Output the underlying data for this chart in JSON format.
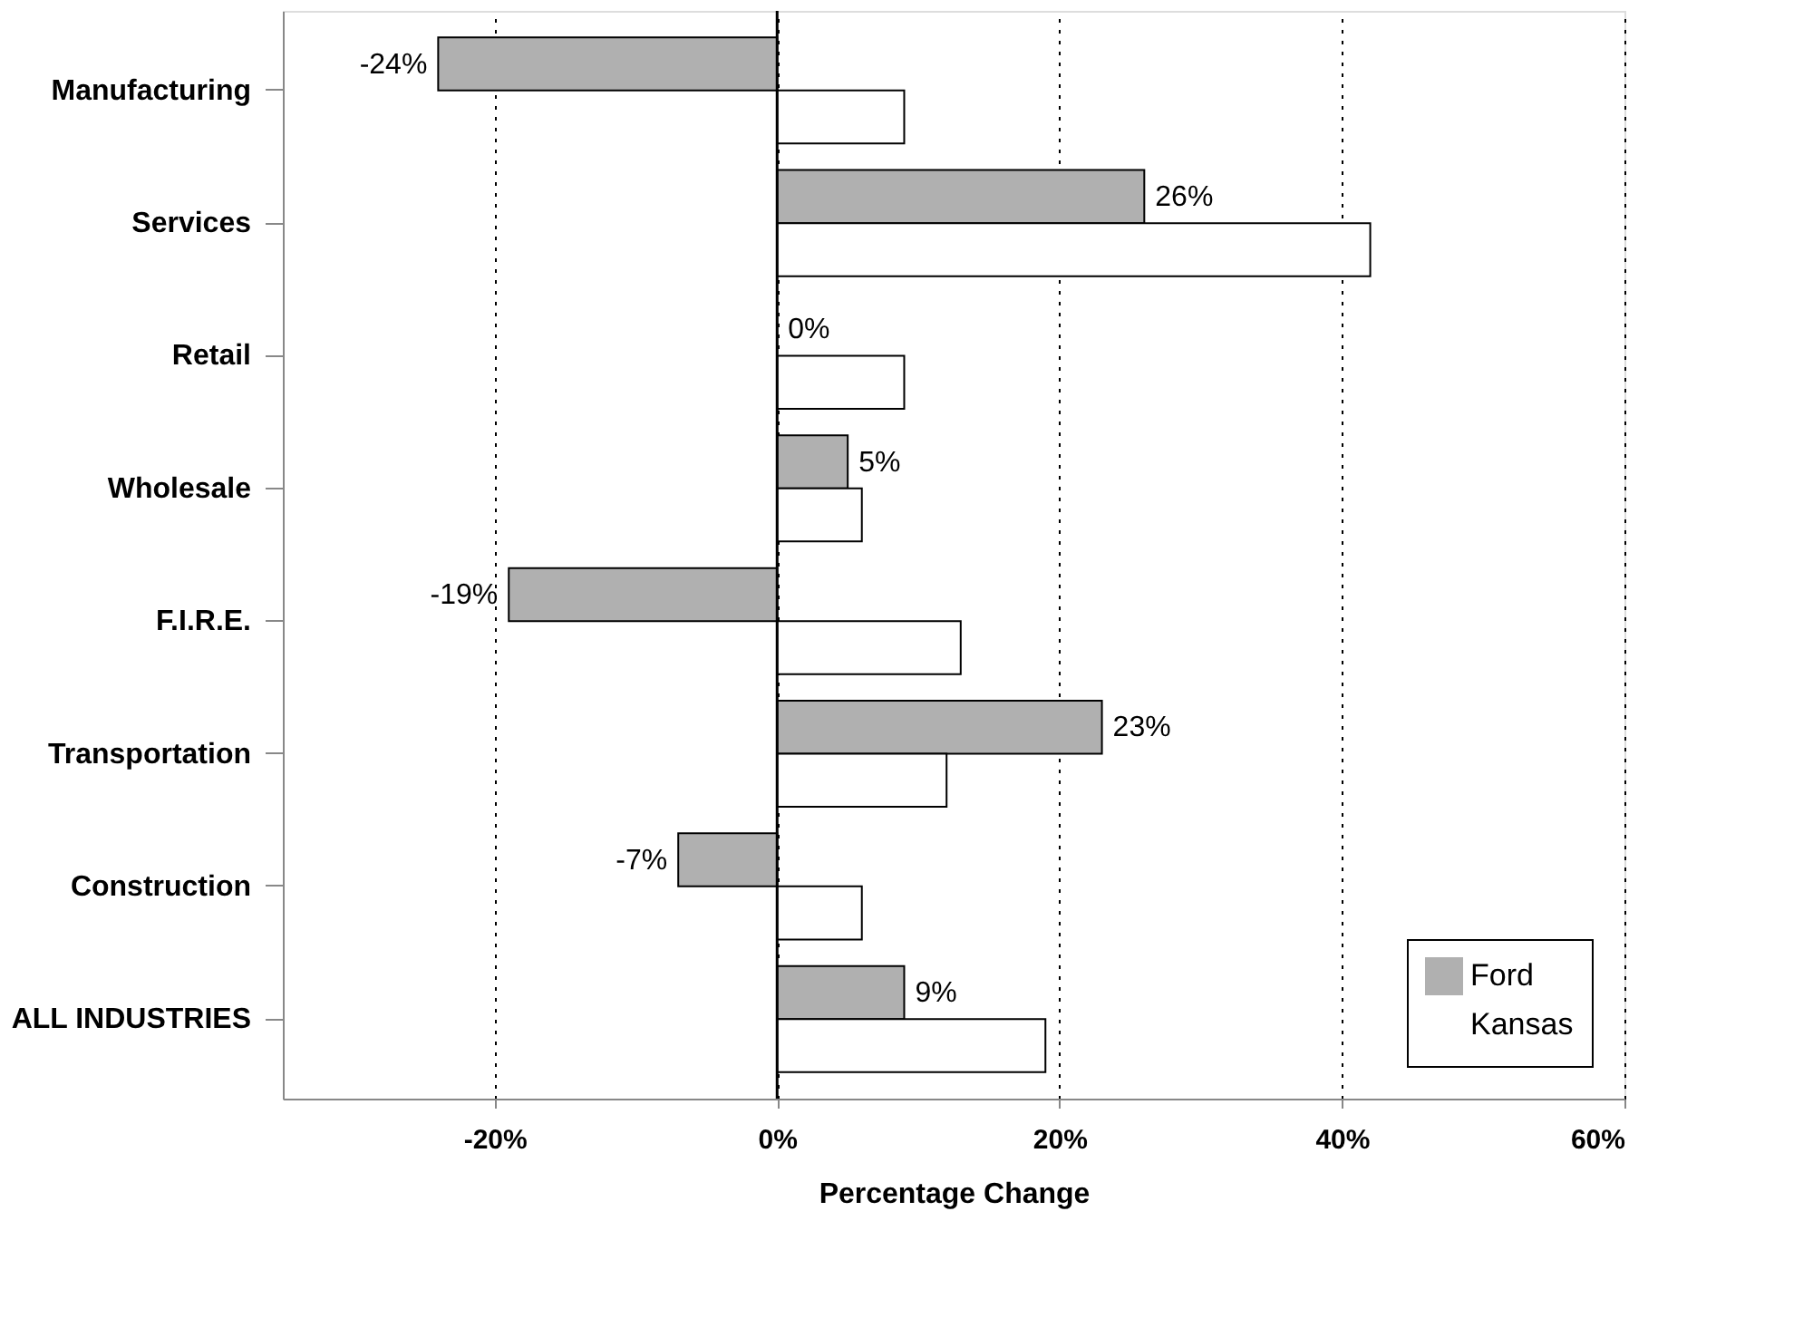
{
  "chart_data": {
    "type": "bar",
    "orientation": "horizontal",
    "xlabel": "Percentage Change",
    "categories": [
      "Manufacturing",
      "Services",
      "Retail",
      "Wholesale",
      "F.I.R.E.",
      "Transportation",
      "Construction",
      "ALL INDUSTRIES"
    ],
    "series": [
      {
        "name": "Ford",
        "color": "#b0b0b0",
        "values": [
          -24,
          26,
          0,
          5,
          -19,
          23,
          -7,
          9
        ],
        "value_labels": [
          "-24%",
          "26%",
          "0%",
          "5%",
          "-19%",
          "23%",
          "-7%",
          "9%"
        ]
      },
      {
        "name": "Kansas",
        "color": "#ffffff",
        "values": [
          9,
          42,
          9,
          6,
          13,
          12,
          6,
          19
        ]
      }
    ],
    "xlim": [
      -35,
      60
    ],
    "xticks": [
      {
        "value": -20,
        "label": "-20%"
      },
      {
        "value": 0,
        "label": "0%"
      },
      {
        "value": 20,
        "label": "20%"
      },
      {
        "value": 40,
        "label": "40%"
      },
      {
        "value": 60,
        "label": "60%"
      }
    ],
    "ref_lines": [
      {
        "axis": "x",
        "value": 0
      }
    ],
    "grid": "x",
    "legend": "bottom right"
  }
}
